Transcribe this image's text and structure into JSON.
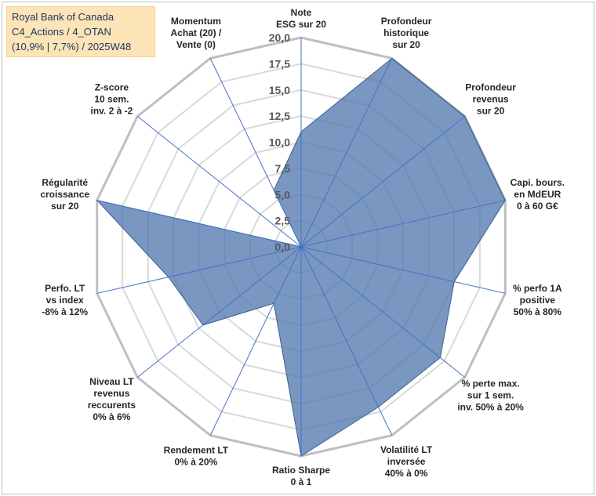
{
  "chart_data": {
    "type": "radar",
    "title_lines": [
      "Royal Bank of Canada",
      "C4_Actions / 4_OTAN",
      "(10,9% | 7,7%) / 2025W48"
    ],
    "scale": {
      "min": 0,
      "max": 20,
      "step": 2.5
    },
    "tick_labels": [
      "0,0",
      "2,5",
      "5,0",
      "7,5",
      "10,0",
      "12,5",
      "15,0",
      "17,5",
      "20,0"
    ],
    "categories": [
      [
        "Note",
        "ESG sur 20"
      ],
      [
        "Profondeur",
        "historique",
        "sur 20"
      ],
      [
        "Profondeur",
        "revenus",
        "sur 20"
      ],
      [
        "Capi. bours.",
        "en MdEUR",
        "0 à 60 G€"
      ],
      [
        "% perfo 1A",
        "positive",
        "50% à 80%"
      ],
      [
        "% perte max.",
        "sur 1 sem.",
        "inv. 50% à 20%"
      ],
      [
        "Volatilité LT",
        "inversée",
        "40% à 0%"
      ],
      [
        "Ratio Sharpe",
        "0 à 1"
      ],
      [
        "Rendement LT",
        "0% à 20%"
      ],
      [
        "Niveau LT",
        "revenus",
        "reccurents",
        "0% à 6%"
      ],
      [
        "Perfo. LT",
        "vs index",
        "-8% à 12%"
      ],
      [
        "Régularité",
        "croissance",
        "sur 20"
      ],
      [
        "Z-score",
        "10 sem.",
        "inv. 2 à -2"
      ],
      [
        "Momentum",
        "Achat (20) /",
        "Vente (0)"
      ]
    ],
    "series": [
      {
        "name": "Royal Bank of Canada",
        "color": "#4f76ad",
        "values": [
          11,
          20,
          20,
          20,
          15,
          17,
          17,
          20,
          6,
          12,
          13,
          20,
          0,
          6
        ]
      }
    ],
    "colors": {
      "fill": "#4f76ad",
      "grid": "#d9d9d9",
      "outer_grid": "#bfbfbf",
      "axis": "#4472c4",
      "title_bg": "#fce4b6"
    }
  }
}
